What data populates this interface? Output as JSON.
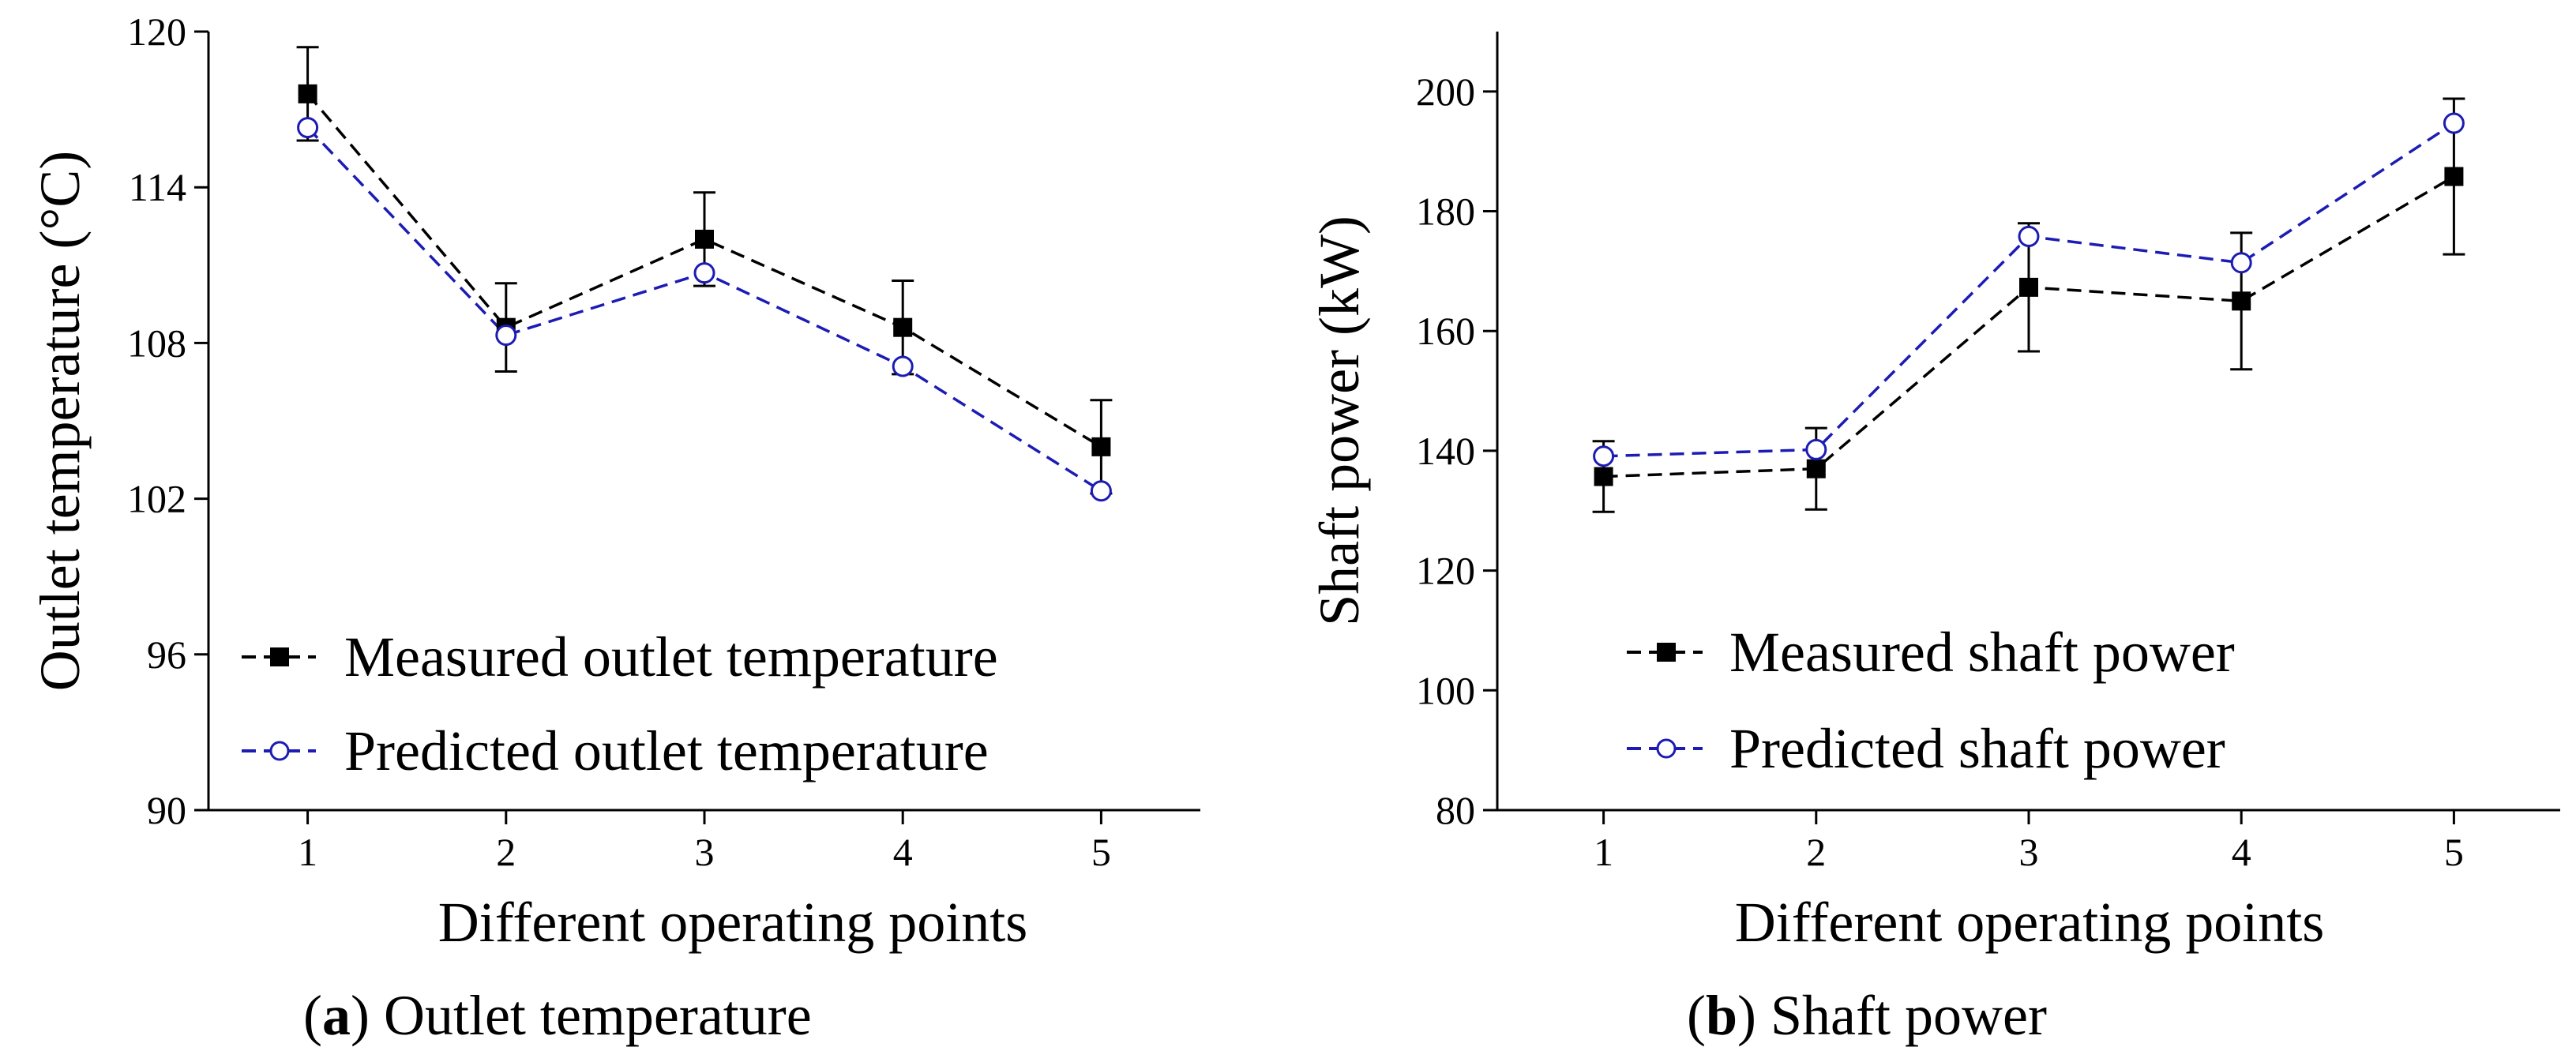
{
  "colors": {
    "measured": "#000000",
    "predicted": "#1c1cb4",
    "errorbar": "#000000"
  },
  "chart_data": [
    {
      "type": "line",
      "caption_letter": "a",
      "caption_text": "Outlet temperature",
      "xlabel": "Different operating points",
      "ylabel": "Outlet temperature (°C)",
      "x": [
        1,
        2,
        3,
        4,
        5
      ],
      "xticks": [
        "1",
        "2",
        "3",
        "4",
        "5"
      ],
      "xlim": [
        0.5,
        5.5
      ],
      "ylim": [
        90,
        120
      ],
      "yticks": [
        "90",
        "96",
        "102",
        "108",
        "114",
        "120"
      ],
      "grid": false,
      "legend_position": "lower-left",
      "series": [
        {
          "name": "Measured outlet temperature",
          "key": "measured",
          "marker": "filled-square",
          "line": "dashed",
          "values": [
            117.6,
            108.6,
            112.0,
            108.6,
            104.0
          ],
          "err_low": [
            115.8,
            106.9,
            110.2,
            106.8,
            102.2
          ],
          "err_high": [
            119.4,
            110.3,
            113.8,
            110.4,
            105.8
          ]
        },
        {
          "name": "Predicted outlet temperature",
          "key": "predicted",
          "marker": "open-circle",
          "line": "dashed",
          "values": [
            116.3,
            108.3,
            110.7,
            107.1,
            102.3
          ]
        }
      ]
    },
    {
      "type": "line",
      "caption_letter": "b",
      "caption_text": "Shaft power",
      "xlabel": "Different operating  points",
      "ylabel": "Shaft power (kW)",
      "x": [
        1,
        2,
        3,
        4,
        5
      ],
      "xticks": [
        "1",
        "2",
        "3",
        "4",
        "5"
      ],
      "xlim": [
        0.5,
        5.5
      ],
      "ylim": [
        80,
        210
      ],
      "yticks": [
        "80",
        "100",
        "120",
        "140",
        "160",
        "180",
        "200"
      ],
      "grid": false,
      "legend_position": "lower-left",
      "series": [
        {
          "name": "Measured shaft power",
          "key": "measured",
          "marker": "filled-square",
          "line": "dashed",
          "values": [
            135.7,
            137.0,
            167.3,
            165.0,
            185.8
          ],
          "err_low": [
            129.8,
            130.2,
            156.6,
            153.6,
            172.8
          ],
          "err_high": [
            141.6,
            143.8,
            178.0,
            176.4,
            198.8
          ]
        },
        {
          "name": "Predicted shaft power",
          "key": "predicted",
          "marker": "open-circle",
          "line": "dashed",
          "values": [
            139.1,
            140.2,
            175.8,
            171.4,
            194.7
          ]
        }
      ]
    }
  ]
}
